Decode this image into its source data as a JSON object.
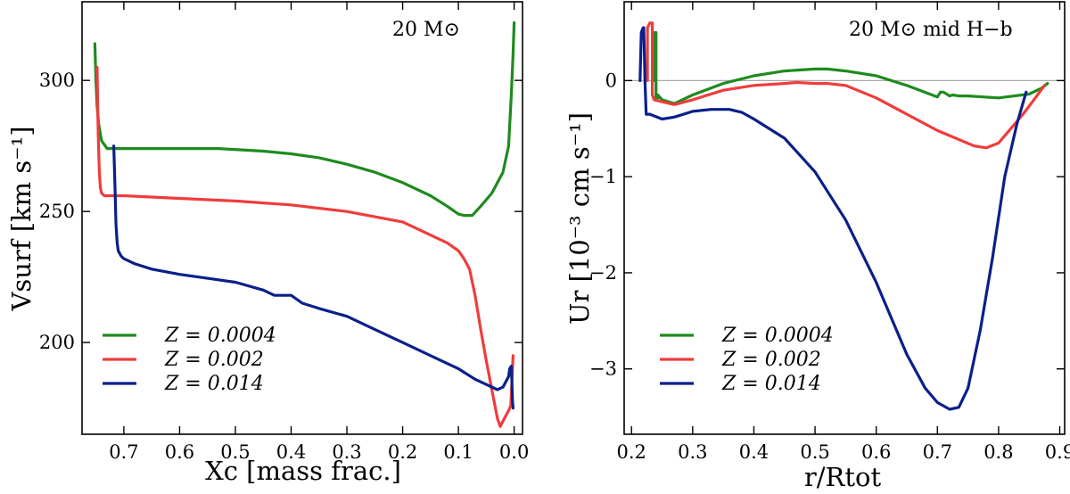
{
  "chart_data": [
    {
      "type": "line",
      "title": "",
      "annotation": "20 M⊙",
      "xlabel": "Xc [mass frac.]",
      "ylabel": "Vsurf [km s⁻¹]",
      "xlim": [
        0.775,
        -0.015
      ],
      "ylim": [
        165,
        330
      ],
      "xticks": [
        0.7,
        0.6,
        0.5,
        0.4,
        0.3,
        0.2,
        0.1,
        0.0
      ],
      "xtick_labels": [
        "0.7",
        "0.6",
        "0.5",
        "0.4",
        "0.3",
        "0.2",
        "0.1",
        "0.0"
      ],
      "yticks": [
        200,
        250,
        300
      ],
      "ytick_labels": [
        "200",
        "250",
        "300"
      ],
      "legend_position": "lower-left",
      "series": [
        {
          "name": "Z = 0.0004",
          "color": "#1e8b1e",
          "x": [
            0.752,
            0.75,
            0.748,
            0.745,
            0.74,
            0.73,
            0.7,
            0.6,
            0.53,
            0.45,
            0.4,
            0.35,
            0.3,
            0.25,
            0.2,
            0.15,
            0.12,
            0.1,
            0.09,
            0.075,
            0.06,
            0.04,
            0.02,
            0.01,
            0.005,
            0.002,
            0.0
          ],
          "y": [
            314,
            300,
            290,
            283,
            277,
            274,
            274,
            274,
            274,
            273,
            272,
            270.5,
            268,
            265,
            261,
            256,
            252,
            249,
            248.5,
            248.5,
            252,
            257,
            265,
            275,
            295,
            310,
            322
          ]
        },
        {
          "name": "Z = 0.002",
          "color": "#f03c3c",
          "x": [
            0.748,
            0.746,
            0.744,
            0.742,
            0.74,
            0.735,
            0.72,
            0.7,
            0.6,
            0.5,
            0.4,
            0.3,
            0.2,
            0.15,
            0.12,
            0.1,
            0.09,
            0.08,
            0.07,
            0.06,
            0.05,
            0.04,
            0.03,
            0.025,
            0.02,
            0.015,
            0.01,
            0.006,
            0.004,
            0.002
          ],
          "y": [
            305,
            280,
            265,
            259,
            257,
            256,
            256,
            256,
            255,
            254,
            252.5,
            250,
            246,
            241,
            238,
            235,
            232,
            228,
            218,
            205,
            193,
            182,
            171,
            168,
            170,
            172,
            174,
            176,
            185,
            195
          ]
        },
        {
          "name": "Z = 0.014",
          "color": "#0b1f8a",
          "x": [
            0.718,
            0.716,
            0.714,
            0.712,
            0.71,
            0.705,
            0.7,
            0.68,
            0.65,
            0.6,
            0.55,
            0.5,
            0.45,
            0.43,
            0.4,
            0.38,
            0.35,
            0.3,
            0.25,
            0.2,
            0.15,
            0.1,
            0.07,
            0.05,
            0.03,
            0.02,
            0.015,
            0.01,
            0.008,
            0.005,
            0.004,
            0.003,
            0.002
          ],
          "y": [
            275,
            260,
            245,
            238,
            235,
            233,
            232,
            230,
            228,
            226,
            224.5,
            223,
            220,
            218,
            218,
            215,
            213,
            210,
            205,
            200,
            195,
            190,
            186,
            184,
            182,
            183,
            185,
            187,
            190,
            191,
            185,
            178,
            175
          ]
        }
      ]
    },
    {
      "type": "line",
      "title": "",
      "annotation": "20 M⊙ mid H−b",
      "xlabel": "r/Rtot",
      "ylabel": "Ur [10⁻³ cm s⁻¹]",
      "xlim": [
        0.188,
        0.908
      ],
      "ylim": [
        -3.68,
        0.82
      ],
      "xticks": [
        0.2,
        0.3,
        0.4,
        0.5,
        0.6,
        0.7,
        0.8,
        0.9
      ],
      "xtick_labels": [
        "0.2",
        "0.3",
        "0.4",
        "0.5",
        "0.6",
        "0.7",
        "0.8",
        "0.9"
      ],
      "yticks": [
        -3,
        -2,
        -1,
        0
      ],
      "ytick_labels": [
        "−3",
        "−2",
        "−1",
        "0"
      ],
      "zero_line": true,
      "legend_position": "lower-left",
      "series": [
        {
          "name": "Z = 0.0004",
          "color": "#1e8b1e",
          "x": [
            0.236,
            0.236,
            0.238,
            0.24,
            0.24,
            0.243,
            0.243,
            0.25,
            0.27,
            0.3,
            0.35,
            0.4,
            0.45,
            0.5,
            0.52,
            0.55,
            0.6,
            0.65,
            0.7,
            0.705,
            0.71,
            0.72,
            0.725,
            0.735,
            0.75,
            0.8,
            0.85,
            0.87,
            0.88
          ],
          "y": [
            0.0,
            0.45,
            0.5,
            0.5,
            -0.18,
            -0.18,
            -0.15,
            -0.2,
            -0.24,
            -0.15,
            -0.03,
            0.05,
            0.1,
            0.12,
            0.12,
            0.1,
            0.05,
            -0.05,
            -0.17,
            -0.12,
            -0.12,
            -0.16,
            -0.15,
            -0.16,
            -0.16,
            -0.18,
            -0.14,
            -0.08,
            -0.03
          ]
        },
        {
          "name": "Z = 0.002",
          "color": "#f03c3c",
          "x": [
            0.226,
            0.226,
            0.23,
            0.234,
            0.234,
            0.237,
            0.25,
            0.27,
            0.3,
            0.35,
            0.4,
            0.45,
            0.47,
            0.5,
            0.52,
            0.55,
            0.6,
            0.65,
            0.7,
            0.73,
            0.76,
            0.78,
            0.8,
            0.82,
            0.84,
            0.86,
            0.875
          ],
          "y": [
            0.0,
            0.55,
            0.6,
            0.6,
            -0.15,
            -0.2,
            -0.22,
            -0.25,
            -0.2,
            -0.1,
            -0.05,
            -0.03,
            -0.02,
            -0.03,
            -0.03,
            -0.05,
            -0.18,
            -0.35,
            -0.52,
            -0.6,
            -0.68,
            -0.7,
            -0.65,
            -0.5,
            -0.35,
            -0.18,
            -0.05
          ]
        },
        {
          "name": "Z = 0.014",
          "color": "#0b1f8a",
          "x": [
            0.214,
            0.216,
            0.219,
            0.22,
            0.222,
            0.224,
            0.226,
            0.23,
            0.25,
            0.27,
            0.3,
            0.33,
            0.36,
            0.38,
            0.4,
            0.45,
            0.5,
            0.55,
            0.6,
            0.65,
            0.68,
            0.7,
            0.72,
            0.735,
            0.75,
            0.77,
            0.79,
            0.81,
            0.83,
            0.845
          ],
          "y": [
            0.0,
            0.5,
            0.55,
            0.55,
            0.0,
            -0.35,
            -0.35,
            -0.35,
            -0.4,
            -0.38,
            -0.32,
            -0.3,
            -0.3,
            -0.33,
            -0.4,
            -0.6,
            -0.95,
            -1.45,
            -2.1,
            -2.85,
            -3.2,
            -3.35,
            -3.42,
            -3.4,
            -3.2,
            -2.6,
            -1.85,
            -1.0,
            -0.45,
            -0.12
          ]
        }
      ]
    }
  ]
}
